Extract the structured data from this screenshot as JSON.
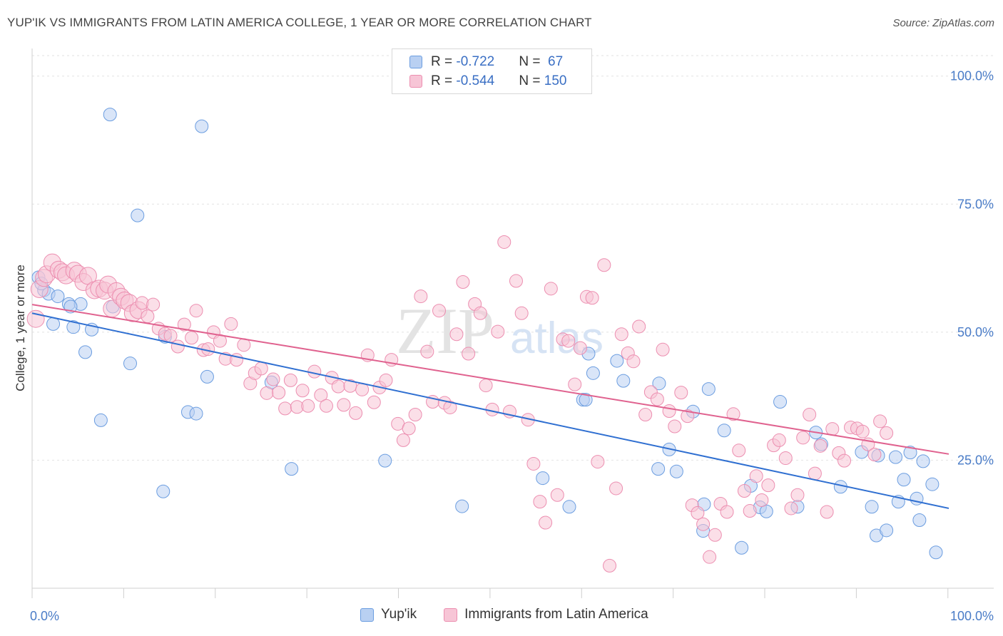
{
  "title": "YUP'IK VS IMMIGRANTS FROM LATIN AMERICA COLLEGE, 1 YEAR OR MORE CORRELATION CHART",
  "source": "Source: ZipAtlas.com",
  "watermark": {
    "zip": "ZIP",
    "atlas": "atlas"
  },
  "legend": {
    "rows": [
      {
        "r_label": "R = ",
        "r_value": "-0.722",
        "n_label": "N = ",
        "n_value": " 67",
        "color": "#a9c5ee"
      },
      {
        "r_label": "R = ",
        "r_value": "-0.544",
        "n_label": "N = ",
        "n_value": "150",
        "color": "#f5b8cb"
      }
    ]
  },
  "chart_data": {
    "type": "scatter",
    "title": "YUP'IK VS IMMIGRANTS FROM LATIN AMERICA COLLEGE, 1 YEAR OR MORE CORRELATION CHART",
    "xlabel": "",
    "ylabel": "College, 1 year or more",
    "xlim": [
      0,
      100
    ],
    "ylim": [
      0,
      104
    ],
    "x_ticks": [
      "0.0%",
      "100.0%"
    ],
    "y_ticks": [
      {
        "value": 25,
        "label": "25.0%"
      },
      {
        "value": 50,
        "label": "50.0%"
      },
      {
        "value": 75,
        "label": "75.0%"
      },
      {
        "value": 100,
        "label": "100.0%"
      }
    ],
    "grid": true,
    "legend_position": "bottom",
    "series": [
      {
        "name": "Yup'ik",
        "color": "#6b9de0",
        "fill": "#b9d0f2",
        "line_color": "#2f6fd1",
        "trend": [
          [
            0,
            53.7
          ],
          [
            100,
            15.6
          ]
        ],
        "points": [
          [
            0.7,
            60.7
          ],
          [
            1.3,
            58.2
          ],
          [
            1.8,
            57.5
          ],
          [
            2.3,
            51.6
          ],
          [
            4.0,
            55.5
          ],
          [
            4.5,
            51.0
          ],
          [
            5.3,
            55.5
          ],
          [
            5.8,
            46.1
          ],
          [
            6.5,
            50.5
          ],
          [
            7.5,
            32.8
          ],
          [
            8.5,
            92.5
          ],
          [
            8.8,
            55.0
          ],
          [
            10.7,
            43.9
          ],
          [
            11.5,
            72.8
          ],
          [
            14.3,
            18.9
          ],
          [
            14.5,
            49.1
          ],
          [
            17.0,
            34.4
          ],
          [
            17.9,
            34.1
          ],
          [
            18.5,
            90.2
          ],
          [
            19.1,
            41.3
          ],
          [
            26.1,
            40.2
          ],
          [
            28.3,
            23.3
          ],
          [
            38.5,
            24.9
          ],
          [
            46.9,
            16.0
          ],
          [
            55.7,
            21.5
          ],
          [
            58.6,
            15.9
          ],
          [
            60.1,
            36.8
          ],
          [
            60.4,
            36.8
          ],
          [
            60.7,
            45.8
          ],
          [
            61.2,
            42.0
          ],
          [
            63.8,
            44.4
          ],
          [
            68.3,
            23.3
          ],
          [
            68.4,
            40.0
          ],
          [
            69.5,
            27.1
          ],
          [
            70.3,
            22.8
          ],
          [
            72.1,
            34.5
          ],
          [
            73.2,
            11.2
          ],
          [
            73.3,
            16.4
          ],
          [
            73.8,
            38.9
          ],
          [
            75.5,
            30.8
          ],
          [
            77.4,
            7.9
          ],
          [
            78.4,
            20.0
          ],
          [
            79.4,
            15.8
          ],
          [
            80.1,
            15.0
          ],
          [
            81.6,
            36.4
          ],
          [
            83.5,
            15.9
          ],
          [
            85.5,
            30.4
          ],
          [
            86.1,
            28.1
          ],
          [
            88.2,
            19.8
          ],
          [
            90.5,
            26.6
          ],
          [
            91.6,
            15.9
          ],
          [
            92.1,
            10.3
          ],
          [
            92.3,
            25.9
          ],
          [
            93.2,
            11.3
          ],
          [
            94.2,
            25.6
          ],
          [
            94.5,
            16.9
          ],
          [
            95.1,
            21.2
          ],
          [
            95.8,
            26.5
          ],
          [
            96.5,
            17.5
          ],
          [
            96.8,
            13.3
          ],
          [
            97.2,
            24.8
          ],
          [
            98.2,
            20.3
          ],
          [
            98.6,
            7.0
          ],
          [
            1.0,
            59.5
          ],
          [
            2.8,
            57.0
          ],
          [
            4.2,
            55.0
          ],
          [
            64.5,
            40.5
          ]
        ]
      },
      {
        "name": "Immigrants from Latin America",
        "color": "#ec8eb0",
        "fill": "#f7c5d6",
        "line_color": "#e0628f",
        "trend": [
          [
            0,
            55.4
          ],
          [
            100,
            26.2
          ]
        ],
        "points": [
          [
            0.4,
            52.6
          ],
          [
            0.8,
            58.4
          ],
          [
            1.3,
            60.6
          ],
          [
            1.6,
            61.3
          ],
          [
            2.2,
            63.6
          ],
          [
            2.9,
            62.2
          ],
          [
            3.3,
            61.7
          ],
          [
            3.7,
            61.1
          ],
          [
            4.6,
            62.0
          ],
          [
            5.0,
            61.4
          ],
          [
            5.6,
            59.8
          ],
          [
            6.1,
            61.0
          ],
          [
            6.8,
            58.2
          ],
          [
            7.3,
            58.5
          ],
          [
            7.9,
            58.1
          ],
          [
            8.3,
            59.3
          ],
          [
            8.7,
            54.6
          ],
          [
            9.2,
            58.0
          ],
          [
            9.7,
            56.9
          ],
          [
            10.1,
            56.2
          ],
          [
            10.6,
            55.7
          ],
          [
            11.0,
            53.7
          ],
          [
            11.6,
            54.3
          ],
          [
            12.0,
            55.7
          ],
          [
            12.6,
            53.1
          ],
          [
            13.2,
            55.4
          ],
          [
            13.8,
            50.7
          ],
          [
            14.5,
            49.7
          ],
          [
            15.1,
            49.3
          ],
          [
            15.9,
            47.2
          ],
          [
            16.6,
            51.5
          ],
          [
            17.4,
            48.9
          ],
          [
            17.9,
            54.2
          ],
          [
            18.7,
            46.5
          ],
          [
            19.2,
            46.7
          ],
          [
            19.8,
            50.0
          ],
          [
            20.5,
            48.3
          ],
          [
            21.1,
            44.8
          ],
          [
            21.7,
            51.6
          ],
          [
            22.3,
            44.6
          ],
          [
            23.1,
            47.5
          ],
          [
            23.8,
            40.0
          ],
          [
            24.3,
            42.0
          ],
          [
            25.0,
            42.9
          ],
          [
            25.6,
            38.1
          ],
          [
            26.3,
            40.8
          ],
          [
            26.9,
            38.2
          ],
          [
            27.6,
            35.1
          ],
          [
            28.2,
            40.6
          ],
          [
            28.9,
            35.4
          ],
          [
            29.5,
            38.6
          ],
          [
            30.1,
            35.6
          ],
          [
            30.8,
            42.3
          ],
          [
            31.5,
            37.7
          ],
          [
            32.1,
            35.6
          ],
          [
            32.7,
            41.1
          ],
          [
            33.4,
            39.4
          ],
          [
            34.0,
            35.8
          ],
          [
            34.7,
            39.5
          ],
          [
            35.3,
            34.2
          ],
          [
            36.0,
            38.8
          ],
          [
            36.6,
            45.5
          ],
          [
            37.3,
            36.3
          ],
          [
            37.9,
            39.2
          ],
          [
            38.6,
            40.6
          ],
          [
            39.2,
            44.6
          ],
          [
            39.9,
            32.1
          ],
          [
            40.5,
            28.9
          ],
          [
            41.1,
            31.2
          ],
          [
            41.8,
            33.9
          ],
          [
            42.4,
            57.0
          ],
          [
            43.1,
            46.2
          ],
          [
            43.7,
            36.4
          ],
          [
            44.4,
            54.2
          ],
          [
            45.0,
            36.2
          ],
          [
            45.6,
            35.3
          ],
          [
            46.3,
            49.6
          ],
          [
            47.0,
            59.8
          ],
          [
            47.6,
            45.8
          ],
          [
            48.3,
            55.5
          ],
          [
            48.9,
            53.7
          ],
          [
            49.5,
            39.6
          ],
          [
            50.2,
            34.9
          ],
          [
            50.8,
            50.1
          ],
          [
            51.5,
            67.6
          ],
          [
            52.1,
            34.5
          ],
          [
            52.8,
            60.0
          ],
          [
            53.4,
            53.7
          ],
          [
            54.1,
            32.9
          ],
          [
            54.7,
            24.3
          ],
          [
            55.4,
            16.9
          ],
          [
            56.0,
            12.8
          ],
          [
            56.6,
            58.5
          ],
          [
            57.3,
            18.2
          ],
          [
            57.9,
            48.6
          ],
          [
            58.5,
            48.3
          ],
          [
            59.2,
            39.8
          ],
          [
            59.8,
            46.9
          ],
          [
            60.5,
            56.9
          ],
          [
            61.1,
            56.7
          ],
          [
            61.7,
            24.7
          ],
          [
            62.4,
            63.1
          ],
          [
            63.0,
            4.4
          ],
          [
            63.7,
            19.5
          ],
          [
            64.3,
            49.6
          ],
          [
            65.0,
            45.9
          ],
          [
            65.6,
            44.3
          ],
          [
            66.2,
            51.1
          ],
          [
            66.9,
            33.9
          ],
          [
            67.5,
            38.3
          ],
          [
            68.2,
            36.9
          ],
          [
            68.8,
            46.6
          ],
          [
            69.5,
            34.6
          ],
          [
            70.1,
            31.6
          ],
          [
            70.8,
            38.2
          ],
          [
            71.5,
            33.6
          ],
          [
            72.0,
            16.2
          ],
          [
            72.6,
            14.7
          ],
          [
            73.2,
            12.5
          ],
          [
            73.9,
            6.1
          ],
          [
            74.5,
            10.4
          ],
          [
            75.1,
            16.5
          ],
          [
            75.8,
            14.9
          ],
          [
            76.5,
            34.0
          ],
          [
            77.1,
            26.9
          ],
          [
            77.7,
            19.0
          ],
          [
            78.3,
            15.1
          ],
          [
            79.0,
            21.9
          ],
          [
            79.6,
            17.2
          ],
          [
            80.3,
            20.1
          ],
          [
            80.9,
            27.9
          ],
          [
            81.5,
            28.9
          ],
          [
            82.2,
            25.4
          ],
          [
            82.8,
            15.6
          ],
          [
            83.5,
            18.2
          ],
          [
            84.1,
            29.4
          ],
          [
            84.8,
            33.9
          ],
          [
            85.4,
            22.4
          ],
          [
            86.0,
            27.8
          ],
          [
            86.7,
            14.9
          ],
          [
            87.3,
            31.1
          ],
          [
            88.0,
            26.4
          ],
          [
            88.6,
            24.9
          ],
          [
            89.3,
            31.4
          ],
          [
            90.0,
            31.2
          ],
          [
            90.6,
            30.6
          ],
          [
            91.2,
            28.1
          ],
          [
            91.9,
            26.1
          ],
          [
            92.5,
            32.6
          ],
          [
            93.2,
            30.3
          ]
        ]
      }
    ]
  },
  "bottom_legend": [
    {
      "label": "Yup'ik",
      "color": "#b9d0f2",
      "border": "#6b9de0"
    },
    {
      "label": "Immigrants from Latin America",
      "color": "#f7c5d6",
      "border": "#ec8eb0"
    }
  ]
}
